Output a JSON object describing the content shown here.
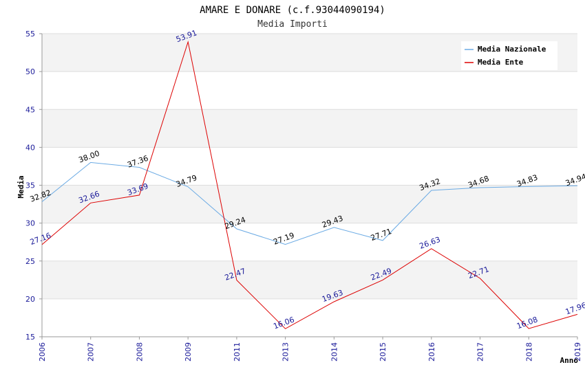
{
  "chart_data": {
    "type": "line",
    "title": "AMARE E DONARE (c.f.93044090194)",
    "subtitle": "Media Importi",
    "xlabel": "Anno",
    "ylabel": "Media",
    "ylim": [
      15,
      55
    ],
    "yticks": [
      15,
      20,
      25,
      30,
      35,
      40,
      45,
      50,
      55
    ],
    "categories": [
      "2006",
      "2007",
      "2008",
      "2009",
      "2011",
      "2013",
      "2014",
      "2015",
      "2016",
      "2017",
      "2018",
      "2019"
    ],
    "grid": true,
    "legend_position": "top-right",
    "series": [
      {
        "name": "Media Nazionale",
        "color": "#6aaae4",
        "label_color": "#000000",
        "values": [
          32.82,
          38.0,
          37.36,
          34.79,
          29.24,
          27.19,
          29.43,
          27.71,
          34.32,
          34.68,
          34.83,
          34.94
        ],
        "labels": [
          "32.82",
          "38.00",
          "37.36",
          "34.79",
          "29.24",
          "27.19",
          "29.43",
          "27.71",
          "34.32",
          "34.68",
          "34.83",
          "34.94"
        ]
      },
      {
        "name": "Media Ente",
        "color": "#dd0000",
        "label_color": "#1a1a99",
        "values": [
          27.16,
          32.66,
          33.69,
          53.91,
          22.47,
          16.06,
          19.63,
          22.49,
          26.63,
          22.71,
          16.08,
          17.96
        ],
        "labels": [
          "27.16",
          "32.66",
          "33.69",
          "53.91",
          "22.47",
          "16.06",
          "19.63",
          "22.49",
          "26.63",
          "22.71",
          "16.08",
          "17.96"
        ]
      }
    ]
  }
}
